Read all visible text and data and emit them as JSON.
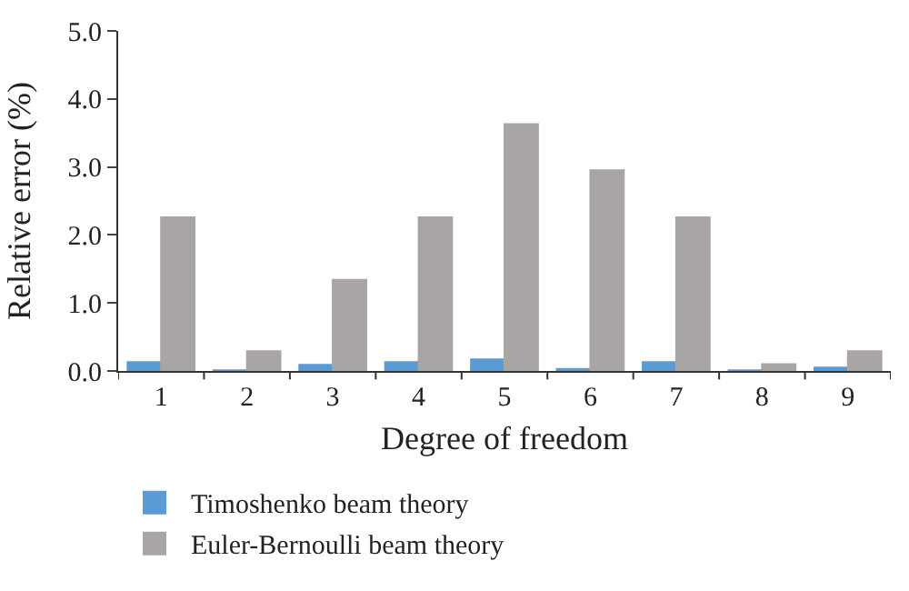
{
  "chart_data": {
    "type": "bar",
    "xlabel": "Degree of freedom",
    "ylabel": "Relative error (%)",
    "categories": [
      "1",
      "2",
      "3",
      "4",
      "5",
      "6",
      "7",
      "8",
      "9"
    ],
    "series": [
      {
        "name": "Timoshenko beam theory",
        "color": "#5b9bd5",
        "values": [
          0.13,
          0.01,
          0.09,
          0.13,
          0.17,
          0.03,
          0.13,
          0.01,
          0.05
        ]
      },
      {
        "name": "Euler-Bernoulli beam theory",
        "color": "#aaa5a5",
        "values": [
          2.26,
          0.29,
          1.34,
          2.26,
          3.63,
          2.95,
          2.26,
          0.1,
          0.29
        ]
      }
    ],
    "ylim": [
      0,
      5
    ],
    "yticks": [
      {
        "value": 0,
        "label": "0.0"
      },
      {
        "value": 1,
        "label": "1.0"
      },
      {
        "value": 2,
        "label": "2.0"
      },
      {
        "value": 3,
        "label": "3.0"
      },
      {
        "value": 4,
        "label": "4.0"
      },
      {
        "value": 5,
        "label": "5.0"
      }
    ],
    "legend": "bottom left"
  }
}
